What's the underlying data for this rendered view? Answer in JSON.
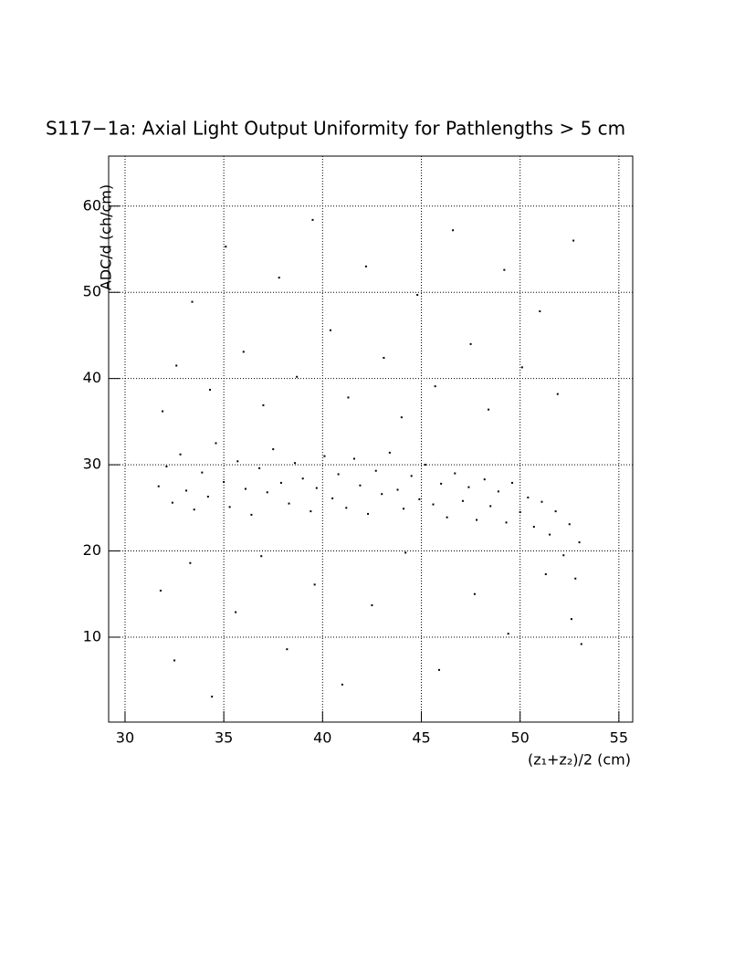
{
  "chart_data": {
    "type": "scatter",
    "title": "S117−1a: Axial Light Output Uniformity for Pathlengths > 5 cm",
    "x_label": "(z₁+z₂)/2 (cm)",
    "y_label": "ADC/d (ch/cm)",
    "color": "#000000",
    "grid": true,
    "xlim": [
      29.17,
      55.7
    ],
    "ylim": [
      0.15,
      65.8
    ],
    "xticks": [
      30,
      35,
      40,
      45,
      50,
      55
    ],
    "yticks": [
      10,
      20,
      30,
      40,
      50,
      60
    ],
    "x": [
      31.7,
      32.1,
      32.4,
      32.8,
      33.1,
      33.5,
      33.9,
      34.2,
      34.6,
      35.0,
      35.3,
      35.7,
      36.1,
      36.4,
      36.8,
      37.2,
      37.5,
      37.9,
      38.3,
      38.6,
      39.0,
      39.4,
      39.7,
      40.1,
      40.5,
      40.8,
      41.2,
      41.6,
      41.9,
      42.3,
      42.7,
      43.0,
      43.4,
      43.8,
      44.1,
      44.5,
      44.9,
      45.2,
      45.6,
      46.0,
      46.3,
      46.7,
      47.1,
      47.4,
      47.8,
      48.2,
      48.5,
      48.9,
      49.3,
      49.6,
      50.0,
      50.4,
      50.7,
      51.1,
      51.5,
      51.8,
      52.2,
      52.5,
      52.8,
      53.0,
      31.9,
      32.6,
      33.4,
      34.3,
      35.1,
      36.0,
      37.0,
      37.8,
      38.7,
      39.5,
      40.4,
      41.3,
      42.2,
      43.1,
      44.0,
      44.8,
      45.7,
      46.6,
      47.5,
      48.4,
      49.2,
      50.1,
      51.0,
      51.9,
      52.7,
      31.8,
      32.5,
      33.3,
      34.4,
      35.6,
      36.9,
      38.2,
      39.6,
      41.0,
      42.5,
      44.2,
      45.9,
      47.7,
      49.4,
      51.3,
      52.6,
      53.1
    ],
    "values": [
      27.5,
      29.8,
      25.6,
      31.2,
      27.0,
      24.8,
      29.1,
      26.3,
      32.5,
      28.0,
      25.1,
      30.4,
      27.2,
      24.2,
      29.6,
      26.8,
      31.8,
      27.9,
      25.5,
      30.2,
      28.4,
      24.6,
      27.3,
      31.0,
      26.1,
      28.9,
      25.0,
      30.7,
      27.6,
      24.3,
      29.3,
      26.6,
      31.4,
      27.1,
      24.9,
      28.7,
      26.0,
      30.0,
      25.4,
      27.8,
      23.9,
      29.0,
      25.8,
      27.4,
      23.6,
      28.3,
      25.2,
      26.9,
      23.3,
      27.9,
      24.5,
      26.2,
      22.8,
      25.7,
      21.9,
      24.6,
      19.5,
      23.1,
      16.8,
      21.0,
      36.2,
      41.5,
      48.9,
      38.7,
      55.3,
      43.1,
      36.9,
      51.7,
      40.2,
      58.4,
      45.6,
      37.8,
      53.0,
      42.4,
      35.5,
      49.7,
      39.1,
      57.2,
      44.0,
      36.4,
      52.6,
      41.3,
      47.8,
      38.2,
      56.0,
      15.4,
      7.3,
      18.6,
      3.1,
      12.9,
      19.4,
      8.6,
      16.1,
      4.5,
      13.7,
      19.8,
      6.2,
      15.0,
      10.4,
      17.3,
      12.1,
      9.2
    ]
  }
}
